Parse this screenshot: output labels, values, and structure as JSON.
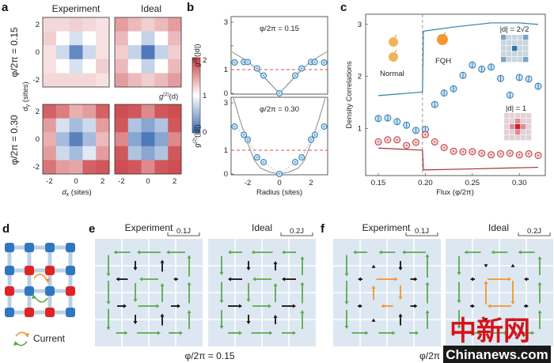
{
  "panel_labels": {
    "a": "a",
    "b": "b",
    "c": "c",
    "d": "d",
    "e": "e",
    "f": "f"
  },
  "colors": {
    "heat_low": "#3a6bb3",
    "heat_mid": "#ffffff",
    "heat_high": "#c83a3f",
    "blue_series": "#2f7fb8",
    "red_series": "#c0393b",
    "current_green": "#5aaa4e",
    "current_black": "#111111",
    "current_orange": "#f0962e",
    "site_blue": "#2f78c0",
    "site_red": "#e02424",
    "bond": "#bcd0e4",
    "map_bg": "#dde7f1"
  },
  "chart_data": [
    {
      "panel": "a",
      "type": "heatmap",
      "col_titles": [
        "Experiment",
        "Ideal"
      ],
      "row_titles": [
        "φ/2π = 0.15",
        "φ/2π = 0.30"
      ],
      "xlabel": {
        "main": "d",
        "sub": "x",
        "unit": " (sites)"
      },
      "ylabel": {
        "main": "d",
        "sub": "y",
        "unit": " (sites)"
      },
      "x_ticks": [
        -2,
        0,
        2
      ],
      "y_ticks": [
        2,
        0,
        -2
      ],
      "colorbar": {
        "label_main": "g",
        "label_sup": "(2)",
        "label_arg": "(d)",
        "ticks": [
          "0",
          "1",
          "2"
        ],
        "range": [
          0,
          2
        ]
      },
      "maps": [
        {
          "flux": "0.15",
          "kind": "Experiment",
          "values": [
            [
              1.2,
              1.2,
              1.25,
              1.2,
              1.15
            ],
            [
              1.25,
              1.0,
              0.8,
              1.0,
              1.15
            ],
            [
              1.15,
              0.75,
              0.2,
              0.75,
              1.15
            ],
            [
              1.15,
              1.0,
              0.8,
              1.0,
              1.25
            ],
            [
              1.2,
              1.2,
              1.2,
              1.2,
              1.15
            ]
          ]
        },
        {
          "flux": "0.15",
          "kind": "Ideal",
          "values": [
            [
              1.5,
              1.35,
              1.25,
              1.35,
              1.5
            ],
            [
              1.35,
              1.0,
              0.7,
              1.0,
              1.35
            ],
            [
              1.25,
              0.7,
              0.1,
              0.7,
              1.25
            ],
            [
              1.35,
              1.0,
              0.7,
              1.0,
              1.35
            ],
            [
              1.5,
              1.35,
              1.25,
              1.35,
              1.5
            ]
          ]
        },
        {
          "flux": "0.30",
          "kind": "Experiment",
          "values": [
            [
              1.8,
              1.65,
              1.4,
              1.5,
              1.8
            ],
            [
              1.5,
              0.8,
              0.55,
              0.75,
              1.5
            ],
            [
              1.4,
              0.55,
              0.15,
              0.55,
              1.35
            ],
            [
              1.5,
              0.75,
              0.55,
              0.85,
              1.5
            ],
            [
              1.7,
              1.5,
              1.45,
              1.8,
              1.85
            ]
          ]
        },
        {
          "flux": "0.30",
          "kind": "Ideal",
          "values": [
            [
              1.9,
              1.85,
              1.6,
              1.85,
              1.9
            ],
            [
              1.85,
              0.6,
              0.4,
              0.6,
              1.85
            ],
            [
              1.6,
              0.4,
              0.1,
              0.4,
              1.6
            ],
            [
              1.85,
              0.6,
              0.4,
              0.6,
              1.85
            ],
            [
              1.9,
              1.85,
              1.6,
              1.85,
              1.9
            ]
          ]
        }
      ]
    },
    {
      "panel": "b",
      "type": "scatter",
      "xlabel": "Radius (sites)",
      "ylabel": {
        "main": "g",
        "sup": "(2)",
        "arg": "(|d|)"
      },
      "xlim": [
        -3,
        3
      ],
      "ylim": [
        0,
        3.2
      ],
      "x_ticks": [
        "-2",
        "0",
        "2"
      ],
      "y_ticks": [
        "0",
        "1",
        "",
        "3"
      ],
      "reference_line": 1,
      "plots": [
        {
          "title": "φ/2π = 0.15",
          "x": [
            -2.83,
            -2.24,
            -2,
            -1.41,
            -1,
            0,
            1,
            1.41,
            2,
            2.24,
            2.83
          ],
          "y": [
            1.3,
            1.32,
            1.32,
            1.05,
            0.75,
            0.0,
            0.75,
            1.05,
            1.32,
            1.32,
            1.3
          ],
          "theory_x": [
            -3,
            -2,
            -1.41,
            -1,
            -0.5,
            0,
            0.5,
            1,
            1.41,
            2,
            3
          ],
          "theory_y": [
            1.75,
            1.35,
            1.0,
            0.7,
            0.35,
            0,
            0.35,
            0.7,
            1.0,
            1.35,
            1.75
          ]
        },
        {
          "title": "φ/2π = 0.30",
          "x": [
            -2.83,
            -2.24,
            -2,
            -1.41,
            -1,
            0,
            1,
            1.41,
            2,
            2.24,
            2.83
          ],
          "y": [
            2.0,
            1.65,
            1.45,
            0.7,
            0.5,
            0.0,
            0.5,
            0.7,
            1.45,
            1.65,
            2.0
          ],
          "theory_x": [
            -2.9,
            -2.5,
            -2,
            -1.6,
            -1.2,
            -0.6,
            0,
            0.6,
            1.2,
            1.6,
            2,
            2.5,
            2.9
          ],
          "theory_y": [
            3.2,
            2.3,
            1.3,
            0.6,
            0.25,
            0.08,
            0,
            0.08,
            0.25,
            0.6,
            1.3,
            2.3,
            3.2
          ]
        }
      ]
    },
    {
      "panel": "c",
      "type": "scatter",
      "xlabel": "Flux (φ/2π)",
      "ylabel": "Density Correlations",
      "x_ticks": [
        "0.15",
        "0.20",
        "0.25",
        "0.30"
      ],
      "y_ticks": [
        "1",
        "2",
        "3"
      ],
      "xlim": [
        0.137,
        0.325
      ],
      "ylim": [
        0.09,
        3.2
      ],
      "transition_flux": 0.197,
      "phase_labels": [
        "Normal",
        "FQH"
      ],
      "x": [
        0.15,
        0.16,
        0.17,
        0.18,
        0.19,
        0.2,
        0.21,
        0.22,
        0.23,
        0.24,
        0.25,
        0.26,
        0.27,
        0.28,
        0.29,
        0.3,
        0.31,
        0.32
      ],
      "series": [
        {
          "marker": "blue",
          "values": [
            1.19,
            1.2,
            1.13,
            1.06,
            0.96,
            0.98,
            1.46,
            1.68,
            1.76,
            2.02,
            2.22,
            2.14,
            2.18,
            1.96,
            1.64,
            1.98,
            1.95,
            1.81
          ]
        },
        {
          "marker": "red",
          "values": [
            0.74,
            0.78,
            0.78,
            0.67,
            0.73,
            0.88,
            0.74,
            0.63,
            0.56,
            0.55,
            0.55,
            0.52,
            0.49,
            0.51,
            0.52,
            0.49,
            0.51,
            0.48
          ]
        }
      ],
      "theory": [
        {
          "color": "blue",
          "x": [
            0.15,
            0.197,
            0.198,
            0.23,
            0.27,
            0.3,
            0.32
          ],
          "y": [
            1.63,
            1.7,
            2.87,
            2.95,
            3.03,
            3.03,
            3.0
          ]
        },
        {
          "color": "red",
          "x": [
            0.15,
            0.197,
            0.198,
            0.25,
            0.32
          ],
          "y": [
            0.62,
            0.58,
            0.2,
            0.22,
            0.25
          ]
        }
      ],
      "insets": [
        {
          "label": "|d| = 2√2",
          "values": [
            [
              0.6,
              0.15,
              0.15,
              0.15,
              0.6
            ],
            [
              0.15,
              0.15,
              0.15,
              0.15,
              0.15
            ],
            [
              0.15,
              0.15,
              1.0,
              0.15,
              0.15
            ],
            [
              0.15,
              0.15,
              0.15,
              0.15,
              0.15
            ],
            [
              0.6,
              0.15,
              0.15,
              0.15,
              0.6
            ]
          ],
          "tone": "blue"
        },
        {
          "label": "|d| = 1",
          "values": [
            [
              0.1,
              0.1,
              0.1,
              0.1,
              0.1
            ],
            [
              0.1,
              0.1,
              0.45,
              0.1,
              0.1
            ],
            [
              0.1,
              0.45,
              1.0,
              0.45,
              0.1
            ],
            [
              0.1,
              0.1,
              0.45,
              0.1,
              0.1
            ],
            [
              0.1,
              0.1,
              0.1,
              0.1,
              0.1
            ]
          ],
          "tone": "red"
        }
      ]
    }
  ],
  "lattice": {
    "sites": [
      [
        "b",
        "b",
        "b",
        "b"
      ],
      [
        "b",
        "r",
        "r",
        "b"
      ],
      [
        "r",
        "b",
        "b",
        "r"
      ],
      [
        "b",
        "r",
        "r",
        "b"
      ]
    ],
    "legend": "Current"
  },
  "current_maps": [
    {
      "panel": "e",
      "title": "Experiment",
      "scale": "0.1J",
      "h": [
        [
          [
            -0.7,
            "g"
          ],
          [
            -1.0,
            "g"
          ],
          [
            -0.8,
            "g"
          ]
        ],
        [
          [
            -0.5,
            "k"
          ],
          [
            -0.8,
            "g"
          ],
          [
            -0.2,
            "k"
          ]
        ],
        [
          [
            0.4,
            "k"
          ],
          [
            0.9,
            "g"
          ],
          [
            0.4,
            "k"
          ]
        ],
        [
          [
            0.5,
            "g"
          ],
          [
            1.0,
            "g"
          ],
          [
            0.6,
            "g"
          ]
        ]
      ],
      "v": [
        [
          [
            -0.9,
            "g"
          ],
          [
            -0.4,
            "k"
          ],
          [
            0.5,
            "k"
          ],
          [
            0.9,
            "g"
          ]
        ],
        [
          [
            -1.0,
            "g"
          ],
          [
            -0.8,
            "g"
          ],
          [
            0.8,
            "g"
          ],
          [
            0.9,
            "g"
          ]
        ],
        [
          [
            -0.9,
            "g"
          ],
          [
            -0.4,
            "k"
          ],
          [
            0.5,
            "k"
          ],
          [
            0.8,
            "g"
          ]
        ]
      ]
    },
    {
      "panel": "e",
      "title": "Ideal",
      "scale": "0.2J",
      "h": [
        [
          [
            -0.6,
            "g"
          ],
          [
            -0.9,
            "g"
          ],
          [
            -0.6,
            "g"
          ]
        ],
        [
          [
            -0.6,
            "k"
          ],
          [
            -0.8,
            "g"
          ],
          [
            -0.6,
            "k"
          ]
        ],
        [
          [
            0.6,
            "k"
          ],
          [
            0.8,
            "g"
          ],
          [
            0.6,
            "k"
          ]
        ],
        [
          [
            0.6,
            "g"
          ],
          [
            0.9,
            "g"
          ],
          [
            0.6,
            "g"
          ]
        ]
      ],
      "v": [
        [
          [
            -0.8,
            "g"
          ],
          [
            -0.4,
            "k"
          ],
          [
            0.4,
            "k"
          ],
          [
            0.8,
            "g"
          ]
        ],
        [
          [
            -0.9,
            "g"
          ],
          [
            -0.8,
            "g"
          ],
          [
            0.8,
            "g"
          ],
          [
            0.9,
            "g"
          ]
        ],
        [
          [
            -0.8,
            "g"
          ],
          [
            -0.4,
            "k"
          ],
          [
            0.4,
            "k"
          ],
          [
            0.8,
            "g"
          ]
        ]
      ]
    },
    {
      "panel": "f",
      "title": "Experiment",
      "scale": "0.1J",
      "h": [
        [
          [
            -0.6,
            "g"
          ],
          [
            -0.7,
            "g"
          ],
          [
            -1.0,
            "g"
          ]
        ],
        [
          [
            -0.2,
            "k"
          ],
          [
            0.9,
            "o"
          ],
          [
            0.3,
            "k"
          ]
        ],
        [
          [
            0.2,
            "k"
          ],
          [
            -0.5,
            "o"
          ],
          [
            0.3,
            "k"
          ]
        ],
        [
          [
            0.7,
            "g"
          ],
          [
            0.7,
            "g"
          ],
          [
            0.4,
            "g"
          ]
        ]
      ],
      "v": [
        [
          [
            -0.9,
            "g"
          ],
          [
            0.05,
            "k"
          ],
          [
            -0.4,
            "k"
          ],
          [
            1.0,
            "g"
          ]
        ],
        [
          [
            -1.0,
            "g"
          ],
          [
            0.6,
            "o"
          ],
          [
            -0.6,
            "o"
          ],
          [
            0.9,
            "g"
          ]
        ],
        [
          [
            -0.8,
            "g"
          ],
          [
            0.05,
            "k"
          ],
          [
            0.5,
            "k"
          ],
          [
            0.8,
            "g"
          ]
        ]
      ]
    },
    {
      "panel": "f",
      "title": "Ideal",
      "scale": "0.2J",
      "h": [
        [
          [
            -0.7,
            "g"
          ],
          [
            -0.7,
            "g"
          ],
          [
            -0.7,
            "g"
          ]
        ],
        [
          [
            -0.2,
            "k"
          ],
          [
            1.0,
            "o"
          ],
          [
            -0.2,
            "k"
          ]
        ],
        [
          [
            0.2,
            "k"
          ],
          [
            -1.0,
            "o"
          ],
          [
            0.2,
            "k"
          ]
        ],
        [
          [
            0.7,
            "g"
          ],
          [
            0.7,
            "g"
          ],
          [
            0.7,
            "g"
          ]
        ]
      ],
      "v": [
        [
          [
            -0.8,
            "g"
          ],
          [
            -0.15,
            "k"
          ],
          [
            0.15,
            "k"
          ],
          [
            0.8,
            "g"
          ]
        ],
        [
          [
            -0.9,
            "g"
          ],
          [
            1.0,
            "o"
          ],
          [
            -1.0,
            "o"
          ],
          [
            0.9,
            "g"
          ]
        ],
        [
          [
            -0.8,
            "g"
          ],
          [
            -0.15,
            "k"
          ],
          [
            0.15,
            "k"
          ],
          [
            0.8,
            "g"
          ]
        ]
      ]
    }
  ],
  "flux_captions": {
    "e": "φ/2π = 0.15",
    "f": "φ/2π ="
  },
  "watermark": {
    "cn": "中新网",
    "en": "Chinanews.com"
  }
}
